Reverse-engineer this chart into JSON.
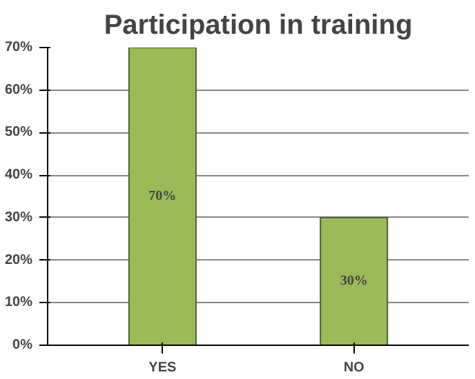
{
  "chart_data": {
    "type": "bar",
    "title": "Participation in training",
    "categories": [
      "YES",
      "NO"
    ],
    "values": [
      70,
      30
    ],
    "value_labels": [
      "70%",
      "30%"
    ],
    "color": "#9bbb59",
    "ylim": [
      0,
      70
    ],
    "yticks": [
      {
        "value": 0,
        "label": "0%"
      },
      {
        "value": 10,
        "label": "10%"
      },
      {
        "value": 20,
        "label": "20%"
      },
      {
        "value": 30,
        "label": "30%"
      },
      {
        "value": 40,
        "label": "40%"
      },
      {
        "value": 50,
        "label": "50%"
      },
      {
        "value": 60,
        "label": "60%"
      },
      {
        "value": 70,
        "label": "70%"
      }
    ],
    "grid": "y"
  }
}
